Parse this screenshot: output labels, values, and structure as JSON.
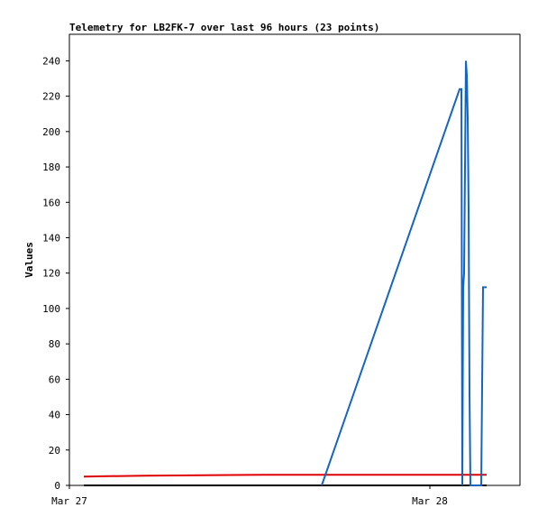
{
  "chart_data": {
    "type": "line",
    "title": "Telemetry for LB2FK-7 over last 96 hours (23 points)",
    "y_label": "Values",
    "xlim": [
      0,
      30
    ],
    "xticks": [
      {
        "value": 0,
        "label": "Mar 27"
      },
      {
        "value": 24,
        "label": "Mar 28"
      }
    ],
    "ylim": [
      0,
      255
    ],
    "yticks": [
      0,
      20,
      40,
      60,
      80,
      100,
      120,
      140,
      160,
      180,
      200,
      220,
      240
    ],
    "series": [
      {
        "color": "#000000",
        "x": [
          0.96,
          27.78
        ],
        "values": [
          0,
          0
        ]
      },
      {
        "color": "#e00000",
        "x": [
          0.96,
          4.98,
          12.9,
          27.78
        ],
        "values": [
          5,
          5.5,
          6,
          6
        ]
      },
      {
        "color": "#1565c0",
        "x": [
          16.8,
          25.98,
          26.1,
          26.16,
          26.22,
          26.28,
          26.4,
          26.46,
          26.52,
          26.58,
          26.64,
          26.7,
          27.42,
          27.48,
          27.54,
          27.78
        ],
        "values": [
          0,
          224,
          224,
          0,
          112,
          120,
          240,
          232,
          208,
          156,
          52,
          0,
          0,
          56,
          112,
          112
        ]
      }
    ]
  }
}
